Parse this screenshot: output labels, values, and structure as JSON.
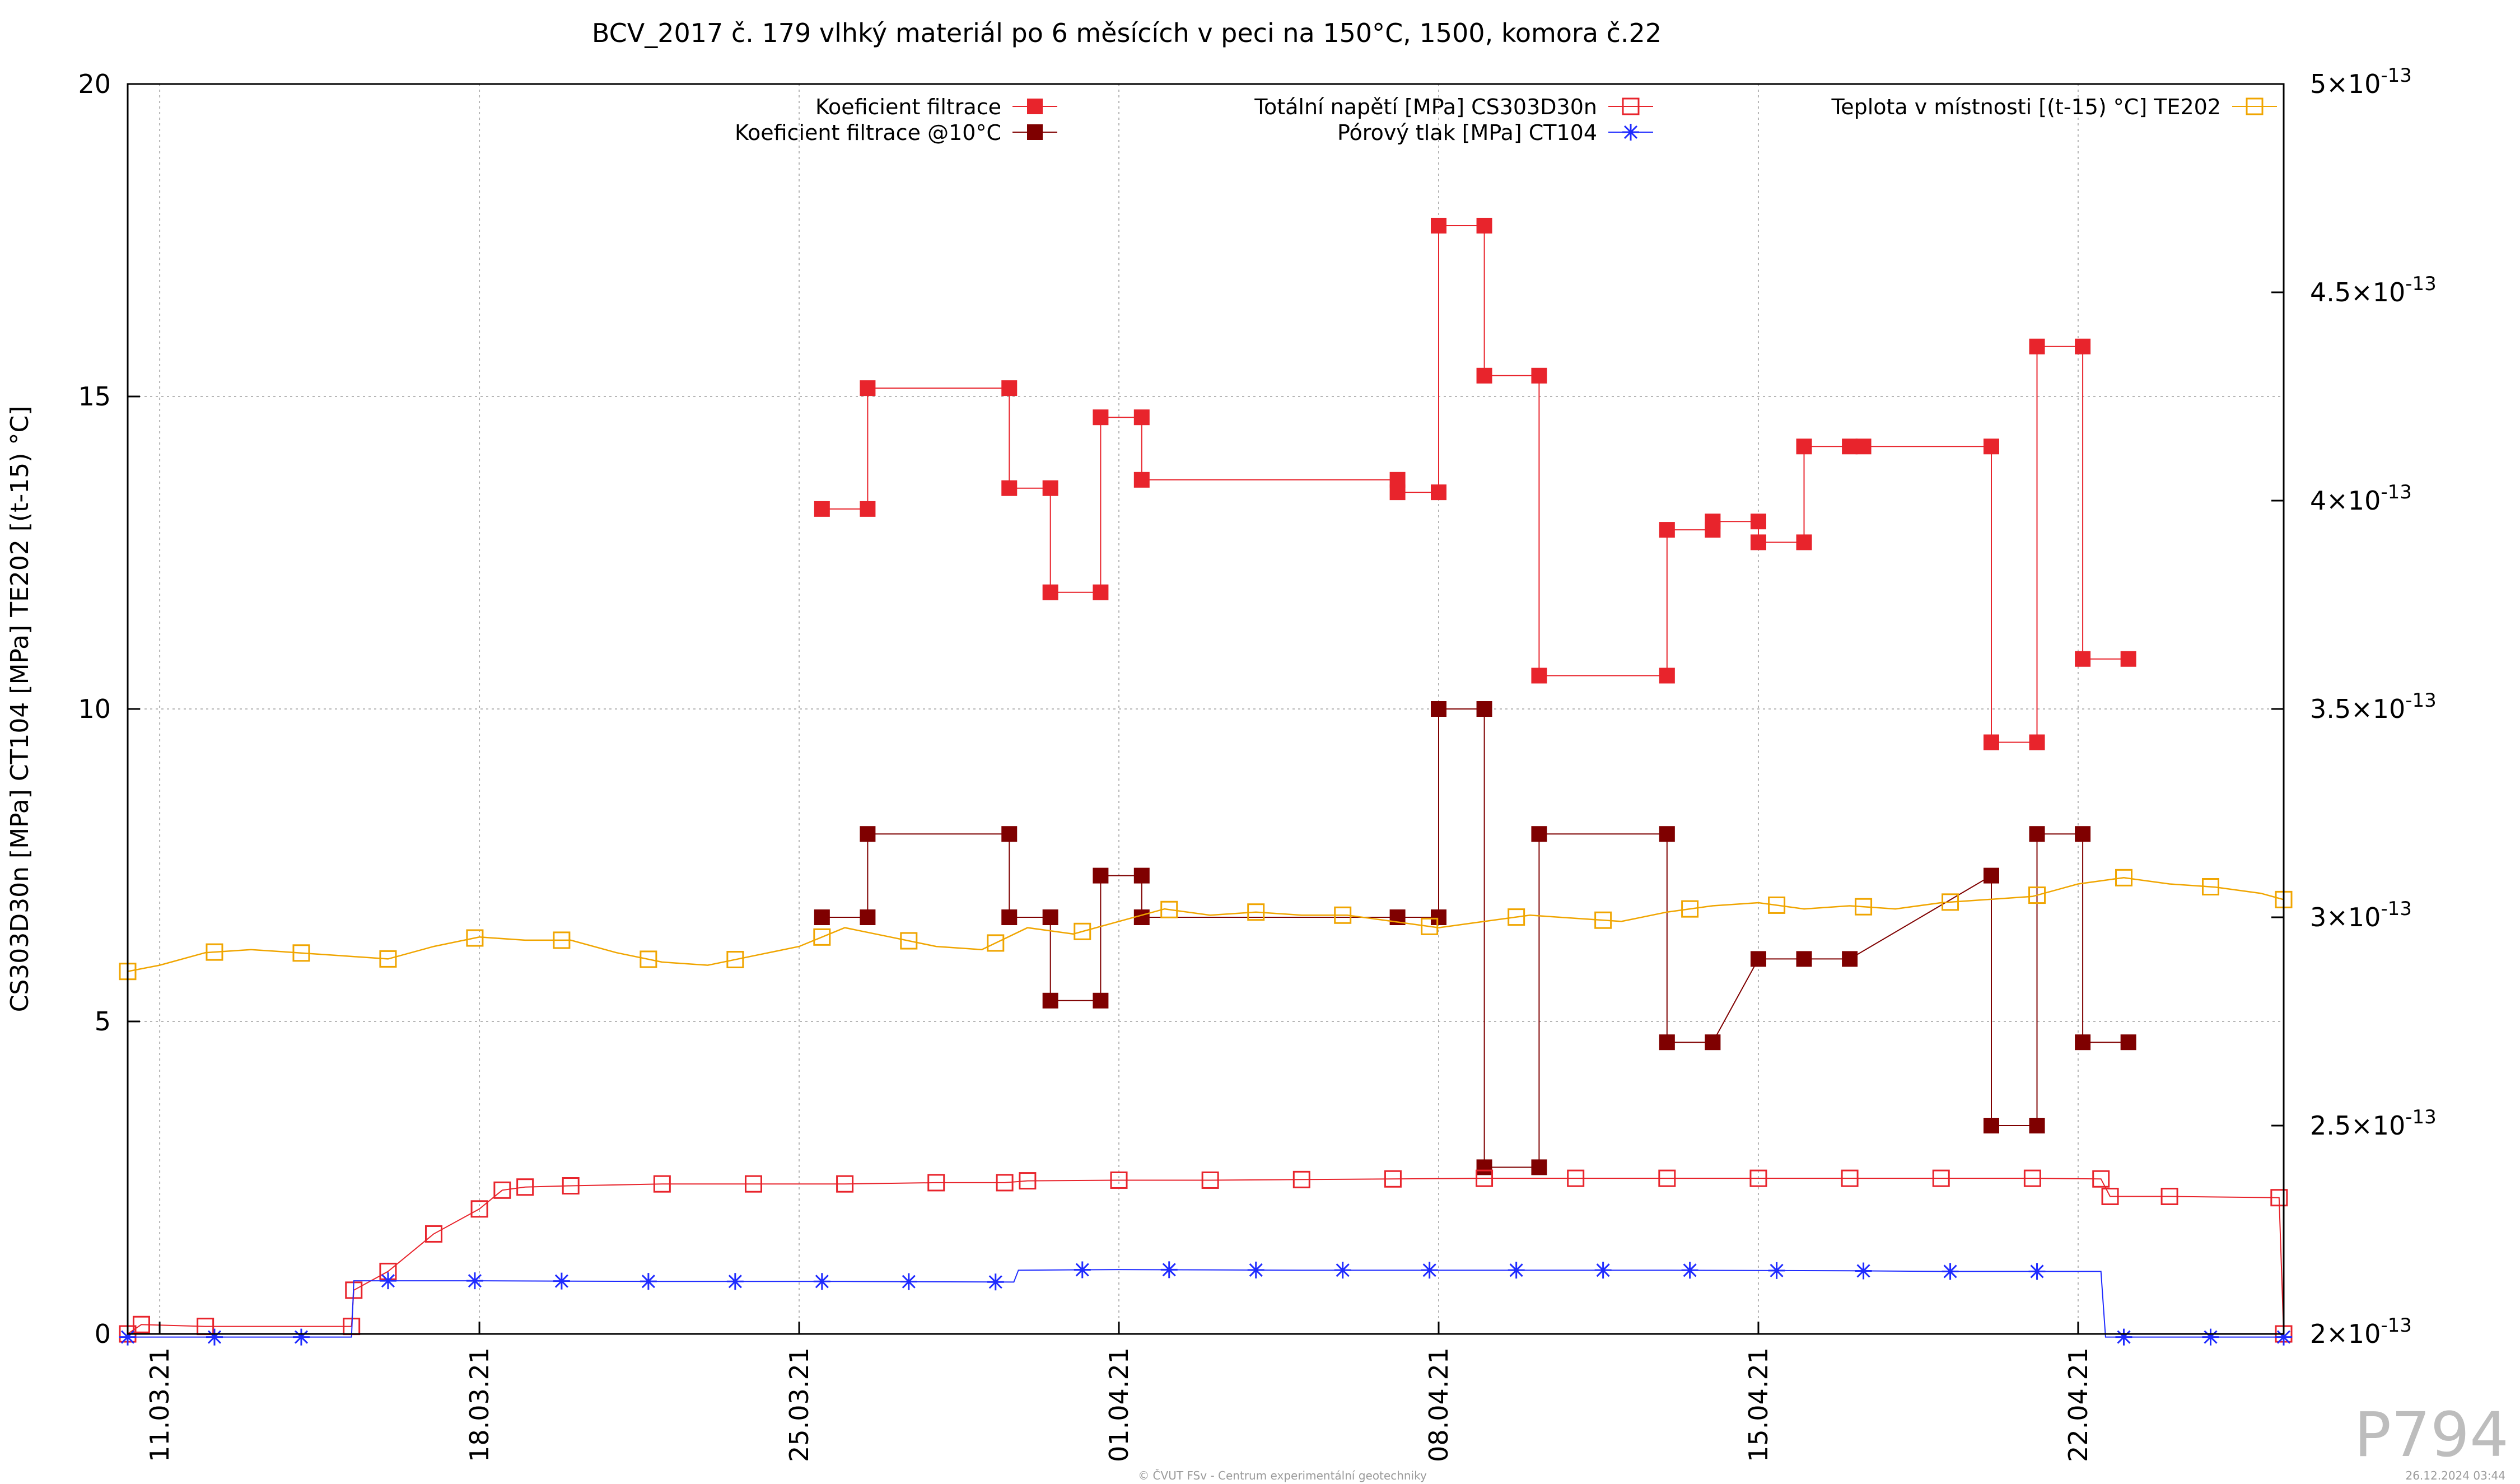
{
  "colors": {
    "filtration": "#e8242c",
    "filtration10": "#7f0000",
    "total_stress": "#e8242c",
    "pore_pressure": "#1f2bff",
    "temperature": "#f0a500",
    "grid": "#b5b5b5",
    "watermark": "#bdbdbd"
  },
  "chart_data": {
    "type": "line",
    "title": "BCV_2017 č. 179 vlhký materiál po 6 měsících v peci na 150°C, 1500, komora č.22",
    "ylabel": "CS303D30n [MPa] CT104 [MPa] TE202 [(t-15) °C]",
    "xlabel": "",
    "xlim_days": [
      10.3,
      57.5
    ],
    "ylim": [
      0,
      20
    ],
    "y2lim": [
      2e-13,
      5e-13
    ],
    "x_tick_labels": [
      "11.03.21",
      "18.03.21",
      "25.03.21",
      "01.04.21",
      "08.04.21",
      "15.04.21",
      "22.04.21"
    ],
    "x_tick_positions": [
      11,
      18,
      25,
      32,
      39,
      46,
      53
    ],
    "y_tick_labels": [
      "0",
      "5",
      "10",
      "15",
      "20"
    ],
    "y_tick_values": [
      0,
      5,
      10,
      15,
      20
    ],
    "y2_tick_mantissas": [
      "2",
      "2.5",
      "3",
      "3.5",
      "4",
      "4.5",
      "5"
    ],
    "y2_tick_values": [
      2e-13,
      2.5e-13,
      3e-13,
      3.5e-13,
      4e-13,
      4.5e-13,
      5e-13
    ],
    "y2_tick_suffix": "×10",
    "y2_tick_exponent": "-13",
    "grid": true,
    "legend_placement": "top",
    "series": [
      {
        "name": "Koeficient filtrace",
        "axis": "y2",
        "marker": "filled-square",
        "x": [
          25.5,
          26.5,
          26.5,
          29.6,
          29.6,
          30.5,
          30.5,
          31.6,
          31.6,
          32.5,
          32.5,
          38.1,
          38.1,
          39.0,
          39.0,
          40.0,
          40.0,
          41.2,
          41.2,
          44.0,
          44.0,
          45.0,
          45.0,
          46.0,
          46.0,
          47.0,
          47.0,
          48.0,
          48.3,
          51.1,
          51.1,
          52.1,
          52.1,
          53.1,
          53.1,
          54.1
        ],
        "y": [
          3.98e-13,
          3.98e-13,
          4.27e-13,
          4.27e-13,
          4.03e-13,
          4.03e-13,
          3.78e-13,
          3.78e-13,
          4.2e-13,
          4.2e-13,
          4.05e-13,
          4.05e-13,
          4.02e-13,
          4.02e-13,
          4.66e-13,
          4.66e-13,
          4.3e-13,
          4.3e-13,
          3.58e-13,
          3.58e-13,
          3.93e-13,
          3.93e-13,
          3.95e-13,
          3.95e-13,
          3.9e-13,
          3.9e-13,
          4.13e-13,
          4.13e-13,
          4.13e-13,
          4.13e-13,
          3.42e-13,
          3.42e-13,
          4.37e-13,
          4.37e-13,
          3.62e-13,
          3.62e-13
        ]
      },
      {
        "name": "Koeficient filtrace @10°C",
        "axis": "y2",
        "marker": "filled-square",
        "x": [
          25.5,
          26.5,
          26.5,
          29.6,
          29.6,
          30.5,
          30.5,
          31.6,
          31.6,
          32.5,
          32.5,
          38.1,
          39.0,
          39.0,
          40.0,
          40.0,
          41.2,
          41.2,
          44.0,
          44.0,
          45.0,
          46.0,
          47.0,
          48.0,
          51.1,
          51.1,
          52.1,
          52.1,
          53.1,
          53.1,
          54.1
        ],
        "y": [
          3e-13,
          3e-13,
          3.2e-13,
          3.2e-13,
          3e-13,
          3e-13,
          2.8e-13,
          2.8e-13,
          3.1e-13,
          3.1e-13,
          3e-13,
          3e-13,
          3e-13,
          3.5e-13,
          3.5e-13,
          2.4e-13,
          2.4e-13,
          3.2e-13,
          3.2e-13,
          2.7e-13,
          2.7e-13,
          2.9e-13,
          2.9e-13,
          2.9e-13,
          3.1e-13,
          2.5e-13,
          2.5e-13,
          3.2e-13,
          3.2e-13,
          2.7e-13,
          2.7e-13
        ]
      },
      {
        "name": "Totální napětí [MPa] CS303D30n",
        "axis": "y",
        "marker": "open-square",
        "x": [
          10.3,
          10.6,
          12.0,
          15.2,
          15.25,
          16.0,
          17.0,
          18.0,
          18.5,
          19.0,
          20.0,
          22.0,
          24.0,
          26.0,
          28.0,
          29.5,
          30.0,
          32.0,
          34.0,
          36.0,
          38.0,
          40.0,
          42.0,
          44.0,
          46.0,
          48.0,
          50.0,
          52.0,
          53.5,
          53.7,
          55.0,
          57.4,
          57.5
        ],
        "y": [
          0.0,
          0.15,
          0.12,
          0.12,
          0.7,
          1.0,
          1.6,
          2.0,
          2.3,
          2.35,
          2.37,
          2.4,
          2.4,
          2.4,
          2.42,
          2.42,
          2.45,
          2.46,
          2.46,
          2.47,
          2.48,
          2.49,
          2.49,
          2.49,
          2.49,
          2.49,
          2.49,
          2.49,
          2.48,
          2.2,
          2.2,
          2.18,
          0.0
        ]
      },
      {
        "name": "Pórový tlak [MPa] CT104",
        "axis": "y",
        "marker": "asterisk",
        "x": [
          10.3,
          15.2,
          15.25,
          18.0,
          22.0,
          26.0,
          29.7,
          29.8,
          32.0,
          36.0,
          40.0,
          44.0,
          48.0,
          50.0,
          53.5,
          53.6,
          55.0,
          57.5
        ],
        "y": [
          -0.05,
          -0.05,
          0.85,
          0.85,
          0.84,
          0.84,
          0.83,
          1.02,
          1.03,
          1.02,
          1.02,
          1.02,
          1.01,
          1.0,
          1.0,
          -0.05,
          -0.05,
          -0.05
        ],
        "markers_at": [
          10.3,
          12.2,
          14.1,
          16.0,
          17.9,
          19.8,
          21.7,
          23.6,
          25.5,
          27.4,
          29.3,
          31.2,
          33.1,
          35.0,
          36.9,
          38.8,
          40.7,
          42.6,
          44.5,
          46.4,
          48.3,
          50.2,
          52.1,
          54.0,
          55.9,
          57.5
        ]
      },
      {
        "name": "Teplota v místnosti [(t-15) °C] TE202",
        "axis": "y",
        "marker": "open-square",
        "x": [
          10.3,
          11.0,
          12.0,
          13.0,
          14.0,
          15.0,
          16.0,
          17.0,
          18.0,
          19.0,
          20.0,
          21.0,
          22.0,
          23.0,
          24.0,
          25.0,
          26.0,
          27.0,
          28.0,
          29.0,
          30.0,
          31.0,
          32.0,
          33.0,
          34.0,
          35.0,
          36.0,
          37.0,
          38.0,
          39.0,
          40.0,
          41.0,
          42.0,
          43.0,
          44.0,
          45.0,
          46.0,
          47.0,
          48.0,
          49.0,
          50.0,
          51.0,
          52.0,
          53.0,
          54.0,
          55.0,
          56.0,
          57.0,
          57.5
        ],
        "y": [
          5.8,
          5.9,
          6.1,
          6.15,
          6.1,
          6.05,
          6.0,
          6.2,
          6.35,
          6.3,
          6.3,
          6.1,
          5.95,
          5.9,
          6.05,
          6.2,
          6.5,
          6.35,
          6.2,
          6.15,
          6.5,
          6.4,
          6.6,
          6.8,
          6.7,
          6.75,
          6.7,
          6.7,
          6.6,
          6.5,
          6.6,
          6.7,
          6.65,
          6.6,
          6.75,
          6.85,
          6.9,
          6.8,
          6.85,
          6.8,
          6.9,
          6.95,
          7.0,
          7.2,
          7.3,
          7.2,
          7.15,
          7.05,
          6.95
        ],
        "markers_at": [
          10.3,
          12.2,
          14.1,
          16.0,
          17.9,
          19.8,
          21.7,
          23.6,
          25.5,
          27.4,
          29.3,
          31.2,
          33.1,
          35.0,
          36.9,
          38.8,
          40.7,
          42.6,
          44.5,
          46.4,
          48.3,
          50.2,
          52.1,
          54.0,
          55.9,
          57.5
        ]
      }
    ]
  },
  "footer": {
    "code": "P794",
    "copyright": "© ČVUT FSv - Centrum experimentální geotechniky",
    "timestamp": "26.12.2024 03:44"
  }
}
